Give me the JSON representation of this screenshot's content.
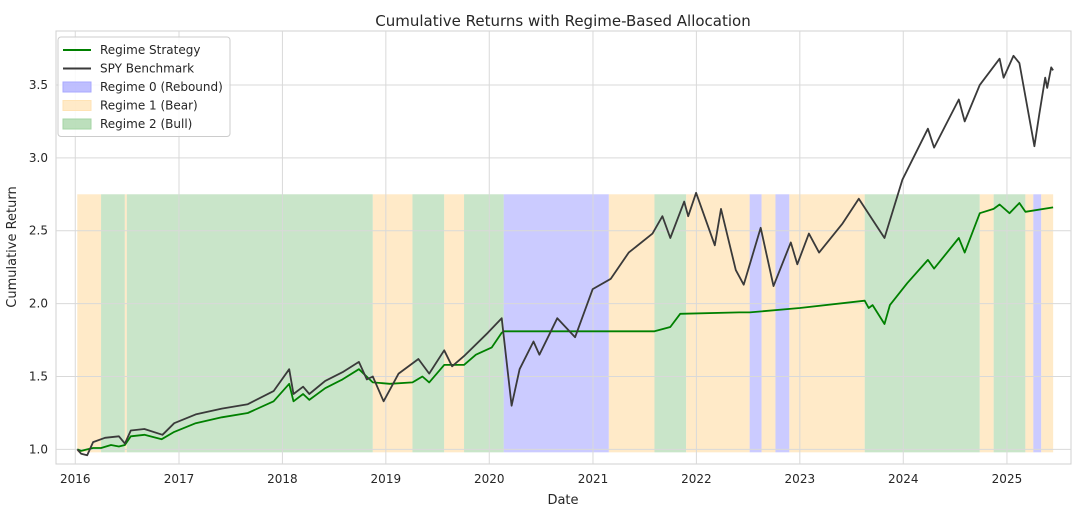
{
  "chart_data": {
    "type": "line",
    "title": "Cumulative Returns with Regime-Based Allocation",
    "xlabel": "Date",
    "ylabel": "Cumulative Return",
    "xlim": [
      "2015-10-25",
      "2025-08-15"
    ],
    "ylim": [
      0.9,
      3.87
    ],
    "grid": true,
    "legend_position": "upper-left",
    "x_ticks": [
      "2016",
      "2017",
      "2018",
      "2019",
      "2020",
      "2021",
      "2022",
      "2023",
      "2024",
      "2025"
    ],
    "y_ticks": [
      "1.0",
      "1.5",
      "2.0",
      "2.5",
      "3.0",
      "3.5"
    ],
    "colors": {
      "strategy": "#008000",
      "benchmark": "#3a3a3a",
      "regime_0": "#a9a9ff",
      "regime_1": "#ffe3b5",
      "regime_2": "#a5d4a5",
      "grid": "#d9d9d9"
    },
    "regime_bands": {
      "top": 2.75,
      "bottom": 0.98,
      "items": [
        {
          "regime": 1,
          "start": "2016-01-08",
          "end": "2016-04-01"
        },
        {
          "regime": 2,
          "start": "2016-04-01",
          "end": "2016-06-24"
        },
        {
          "regime": 1,
          "start": "2016-06-24",
          "end": "2016-07-01"
        },
        {
          "regime": 2,
          "start": "2016-07-01",
          "end": "2018-11-16"
        },
        {
          "regime": 1,
          "start": "2018-11-16",
          "end": "2019-04-05"
        },
        {
          "regime": 2,
          "start": "2019-04-05",
          "end": "2019-07-26"
        },
        {
          "regime": 1,
          "start": "2019-07-26",
          "end": "2019-10-04"
        },
        {
          "regime": 2,
          "start": "2019-10-04",
          "end": "2020-02-21"
        },
        {
          "regime": 0,
          "start": "2020-02-21",
          "end": "2021-02-26"
        },
        {
          "regime": 1,
          "start": "2021-02-26",
          "end": "2021-08-06"
        },
        {
          "regime": 2,
          "start": "2021-08-06",
          "end": "2021-11-26"
        },
        {
          "regime": 1,
          "start": "2021-11-26",
          "end": "2022-07-08"
        },
        {
          "regime": 0,
          "start": "2022-07-08",
          "end": "2022-08-19"
        },
        {
          "regime": 1,
          "start": "2022-08-19",
          "end": "2022-10-07"
        },
        {
          "regime": 0,
          "start": "2022-10-07",
          "end": "2022-11-25"
        },
        {
          "regime": 1,
          "start": "2022-11-25",
          "end": "2023-08-18"
        },
        {
          "regime": 2,
          "start": "2023-08-18",
          "end": "2024-09-27"
        },
        {
          "regime": 1,
          "start": "2024-09-27",
          "end": "2024-11-15"
        },
        {
          "regime": 2,
          "start": "2024-11-15",
          "end": "2025-03-07"
        },
        {
          "regime": 1,
          "start": "2025-03-07",
          "end": "2025-04-04"
        },
        {
          "regime": 0,
          "start": "2025-04-04",
          "end": "2025-05-02"
        },
        {
          "regime": 1,
          "start": "2025-05-02",
          "end": "2025-06-13"
        }
      ]
    },
    "legend": [
      {
        "label": "Regime Strategy",
        "kind": "line",
        "color": "#008000"
      },
      {
        "label": "SPY Benchmark",
        "kind": "line",
        "color": "#3a3a3a"
      },
      {
        "label": "Regime 0 (Rebound)",
        "kind": "patch",
        "color": "#a9a9ff"
      },
      {
        "label": "Regime 1 (Bear)",
        "kind": "patch",
        "color": "#ffe3b5"
      },
      {
        "label": "Regime 2 (Bull)",
        "kind": "patch",
        "color": "#a5d4a5"
      }
    ],
    "series": [
      {
        "name": "Regime Strategy",
        "color": "#008000",
        "points": [
          [
            "2016-01-08",
            1.0
          ],
          [
            "2016-01-22",
            0.99
          ],
          [
            "2016-02-12",
            1.0
          ],
          [
            "2016-03-04",
            1.01
          ],
          [
            "2016-04-01",
            1.01
          ],
          [
            "2016-05-06",
            1.03
          ],
          [
            "2016-06-03",
            1.02
          ],
          [
            "2016-06-24",
            1.03
          ],
          [
            "2016-07-15",
            1.09
          ],
          [
            "2016-09-01",
            1.1
          ],
          [
            "2016-11-01",
            1.07
          ],
          [
            "2016-12-15",
            1.12
          ],
          [
            "2017-03-01",
            1.18
          ],
          [
            "2017-06-01",
            1.22
          ],
          [
            "2017-09-01",
            1.25
          ],
          [
            "2017-12-01",
            1.33
          ],
          [
            "2018-01-25",
            1.45
          ],
          [
            "2018-02-09",
            1.33
          ],
          [
            "2018-03-15",
            1.38
          ],
          [
            "2018-04-06",
            1.34
          ],
          [
            "2018-06-01",
            1.42
          ],
          [
            "2018-08-01",
            1.48
          ],
          [
            "2018-09-28",
            1.55
          ],
          [
            "2018-11-16",
            1.46
          ],
          [
            "2019-01-15",
            1.45
          ],
          [
            "2019-04-05",
            1.46
          ],
          [
            "2019-05-10",
            1.5
          ],
          [
            "2019-06-03",
            1.46
          ],
          [
            "2019-07-26",
            1.58
          ],
          [
            "2019-10-04",
            1.58
          ],
          [
            "2019-11-15",
            1.65
          ],
          [
            "2020-01-10",
            1.7
          ],
          [
            "2020-02-14",
            1.8
          ],
          [
            "2020-02-21",
            1.81
          ],
          [
            "2021-08-06",
            1.81
          ],
          [
            "2021-10-01",
            1.84
          ],
          [
            "2021-11-05",
            1.93
          ],
          [
            "2022-06-01",
            1.94
          ],
          [
            "2022-07-08",
            1.94
          ],
          [
            "2023-01-01",
            1.97
          ],
          [
            "2023-08-18",
            2.02
          ],
          [
            "2023-09-01",
            1.97
          ],
          [
            "2023-09-15",
            1.99
          ],
          [
            "2023-10-27",
            1.86
          ],
          [
            "2023-11-15",
            1.99
          ],
          [
            "2024-01-15",
            2.14
          ],
          [
            "2024-03-28",
            2.3
          ],
          [
            "2024-04-19",
            2.24
          ],
          [
            "2024-07-15",
            2.45
          ],
          [
            "2024-08-05",
            2.35
          ],
          [
            "2024-09-27",
            2.62
          ],
          [
            "2024-11-15",
            2.65
          ],
          [
            "2024-12-06",
            2.68
          ],
          [
            "2025-01-10",
            2.62
          ],
          [
            "2025-02-14",
            2.69
          ],
          [
            "2025-03-07",
            2.63
          ],
          [
            "2025-06-13",
            2.66
          ]
        ]
      },
      {
        "name": "SPY Benchmark",
        "color": "#3a3a3a",
        "points": [
          [
            "2016-01-08",
            1.0
          ],
          [
            "2016-01-22",
            0.97
          ],
          [
            "2016-02-12",
            0.96
          ],
          [
            "2016-03-04",
            1.05
          ],
          [
            "2016-04-15",
            1.08
          ],
          [
            "2016-06-03",
            1.09
          ],
          [
            "2016-06-24",
            1.04
          ],
          [
            "2016-07-15",
            1.13
          ],
          [
            "2016-09-01",
            1.14
          ],
          [
            "2016-11-04",
            1.1
          ],
          [
            "2016-12-15",
            1.18
          ],
          [
            "2017-03-01",
            1.24
          ],
          [
            "2017-06-01",
            1.28
          ],
          [
            "2017-09-01",
            1.31
          ],
          [
            "2017-12-01",
            1.4
          ],
          [
            "2018-01-25",
            1.55
          ],
          [
            "2018-02-09",
            1.38
          ],
          [
            "2018-03-15",
            1.43
          ],
          [
            "2018-04-06",
            1.38
          ],
          [
            "2018-06-01",
            1.47
          ],
          [
            "2018-08-01",
            1.53
          ],
          [
            "2018-09-28",
            1.6
          ],
          [
            "2018-10-26",
            1.48
          ],
          [
            "2018-11-16",
            1.5
          ],
          [
            "2018-12-24",
            1.33
          ],
          [
            "2019-02-15",
            1.52
          ],
          [
            "2019-04-26",
            1.62
          ],
          [
            "2019-06-03",
            1.52
          ],
          [
            "2019-07-26",
            1.68
          ],
          [
            "2019-08-23",
            1.57
          ],
          [
            "2019-10-04",
            1.64
          ],
          [
            "2019-12-27",
            1.8
          ],
          [
            "2020-02-14",
            1.9
          ],
          [
            "2020-03-20",
            1.3
          ],
          [
            "2020-04-17",
            1.55
          ],
          [
            "2020-06-05",
            1.74
          ],
          [
            "2020-06-26",
            1.65
          ],
          [
            "2020-08-28",
            1.9
          ],
          [
            "2020-10-30",
            1.77
          ],
          [
            "2020-12-31",
            2.1
          ],
          [
            "2021-03-05",
            2.17
          ],
          [
            "2021-05-07",
            2.35
          ],
          [
            "2021-07-30",
            2.48
          ],
          [
            "2021-09-03",
            2.6
          ],
          [
            "2021-10-01",
            2.45
          ],
          [
            "2021-11-19",
            2.7
          ],
          [
            "2021-12-03",
            2.6
          ],
          [
            "2021-12-31",
            2.76
          ],
          [
            "2022-03-07",
            2.4
          ],
          [
            "2022-03-29",
            2.65
          ],
          [
            "2022-05-20",
            2.23
          ],
          [
            "2022-06-17",
            2.13
          ],
          [
            "2022-08-16",
            2.52
          ],
          [
            "2022-09-30",
            2.12
          ],
          [
            "2022-11-30",
            2.42
          ],
          [
            "2022-12-23",
            2.27
          ],
          [
            "2023-02-02",
            2.48
          ],
          [
            "2023-03-10",
            2.35
          ],
          [
            "2023-06-01",
            2.55
          ],
          [
            "2023-07-28",
            2.72
          ],
          [
            "2023-10-27",
            2.45
          ],
          [
            "2023-12-29",
            2.85
          ],
          [
            "2024-03-28",
            3.2
          ],
          [
            "2024-04-19",
            3.07
          ],
          [
            "2024-07-15",
            3.4
          ],
          [
            "2024-08-05",
            3.25
          ],
          [
            "2024-09-27",
            3.5
          ],
          [
            "2024-12-06",
            3.68
          ],
          [
            "2024-12-20",
            3.55
          ],
          [
            "2025-01-24",
            3.7
          ],
          [
            "2025-02-14",
            3.65
          ],
          [
            "2025-04-08",
            3.08
          ],
          [
            "2025-04-25",
            3.3
          ],
          [
            "2025-05-16",
            3.55
          ],
          [
            "2025-05-23",
            3.48
          ],
          [
            "2025-06-06",
            3.62
          ],
          [
            "2025-06-13",
            3.6
          ]
        ]
      }
    ]
  }
}
